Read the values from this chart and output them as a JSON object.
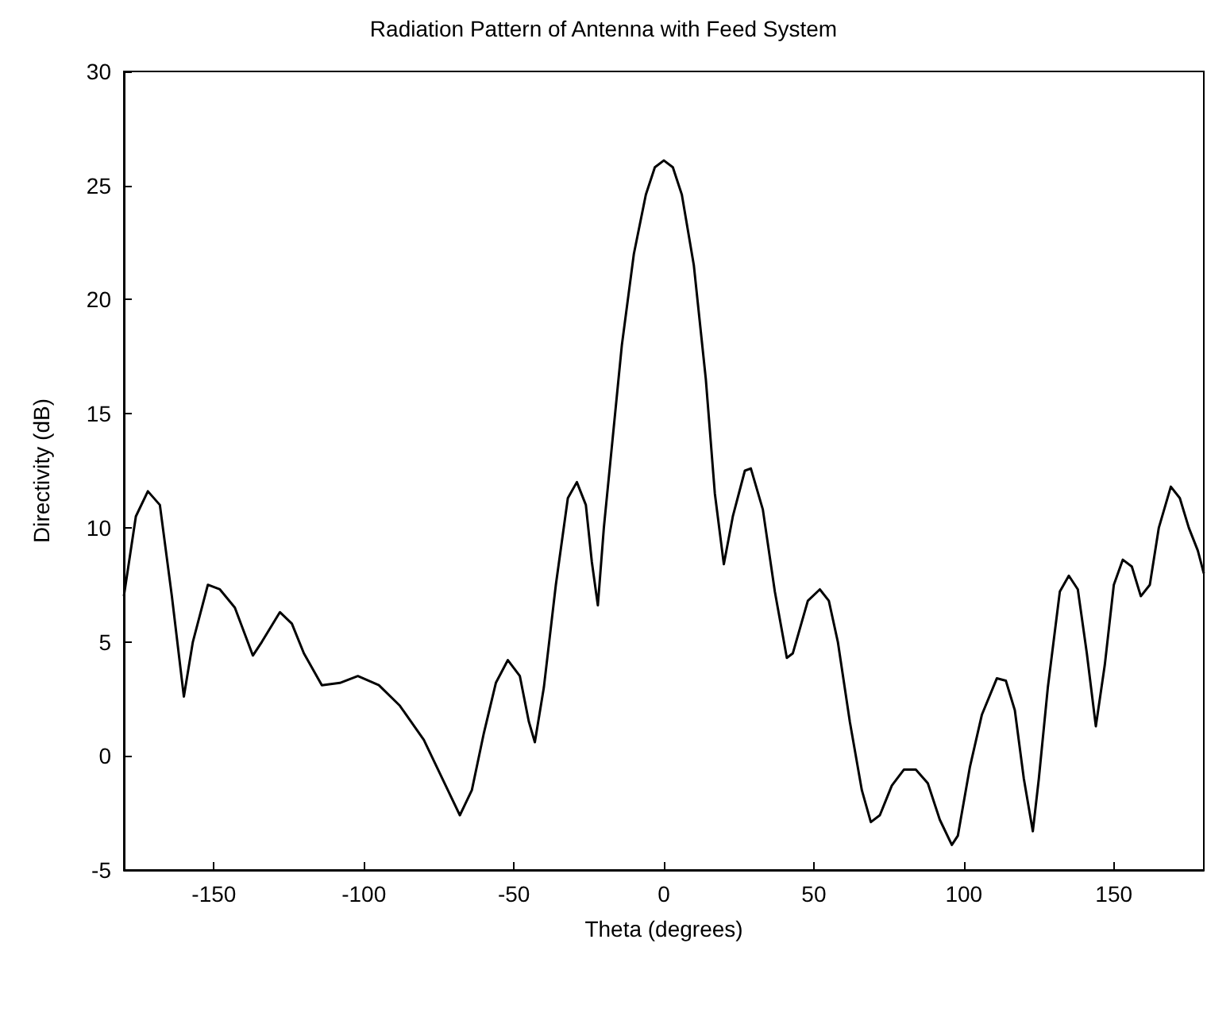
{
  "chart_data": {
    "type": "line",
    "title": "Radiation Pattern of Antenna with Feed System",
    "xlabel": "Theta (degrees)",
    "ylabel": "Directivity (dB)",
    "xlim": [
      -180,
      180
    ],
    "xticks": [
      -150,
      -100,
      -50,
      0,
      50,
      100,
      150
    ],
    "ylim": [
      -5,
      30
    ],
    "yticks": [
      -5,
      0,
      5,
      10,
      15,
      20,
      25,
      30
    ],
    "grid": false,
    "marker": "none",
    "line_style": "solid",
    "series": [
      {
        "color": "#000000",
        "x": [
          -180,
          -176,
          -172,
          -168,
          -164,
          -160,
          -157,
          -152,
          -148,
          -143,
          -137,
          -134,
          -128,
          -124,
          -120,
          -114,
          -108,
          -102,
          -95,
          -88,
          -80,
          -72,
          -68,
          -64,
          -60,
          -56,
          -52,
          -48,
          -45,
          -43,
          -40,
          -36,
          -32,
          -29,
          -26,
          -24,
          -22,
          -20,
          -17,
          -14,
          -10,
          -6,
          -3,
          0,
          3,
          6,
          10,
          14,
          17,
          20,
          23,
          27,
          29,
          33,
          37,
          41,
          43,
          48,
          52,
          55,
          58,
          62,
          66,
          69,
          72,
          76,
          80,
          84,
          88,
          92,
          96,
          98,
          102,
          106,
          111,
          114,
          117,
          120,
          123,
          125,
          128,
          132,
          135,
          138,
          141,
          144,
          147,
          150,
          153,
          156,
          159,
          162,
          165,
          169,
          172,
          175,
          178,
          180
        ],
        "values": [
          7,
          10.5,
          11.6,
          11,
          7,
          2.6,
          5,
          7.5,
          7.3,
          6.5,
          4.4,
          5,
          6.3,
          5.8,
          4.5,
          3.1,
          3.2,
          3.5,
          3.1,
          2.2,
          0.7,
          -1.5,
          -2.6,
          -1.5,
          1,
          3.2,
          4.2,
          3.5,
          1.5,
          0.6,
          3,
          7.5,
          11.3,
          12,
          11,
          8.5,
          6.6,
          10,
          14,
          18,
          22,
          24.6,
          25.8,
          26.1,
          25.8,
          24.6,
          21.5,
          16.5,
          11.5,
          8.4,
          10.5,
          12.5,
          12.6,
          10.8,
          7.2,
          4.3,
          4.5,
          6.8,
          7.3,
          6.8,
          5,
          1.5,
          -1.5,
          -2.9,
          -2.6,
          -1.3,
          -0.6,
          -0.6,
          -1.2,
          -2.8,
          -3.9,
          -3.5,
          -0.5,
          1.8,
          3.4,
          3.3,
          2,
          -1,
          -3.3,
          -1,
          3,
          7.2,
          7.9,
          7.3,
          4.5,
          1.3,
          4,
          7.5,
          8.6,
          8.3,
          7,
          7.5,
          10,
          11.8,
          11.3,
          10,
          9,
          8
        ]
      }
    ]
  }
}
